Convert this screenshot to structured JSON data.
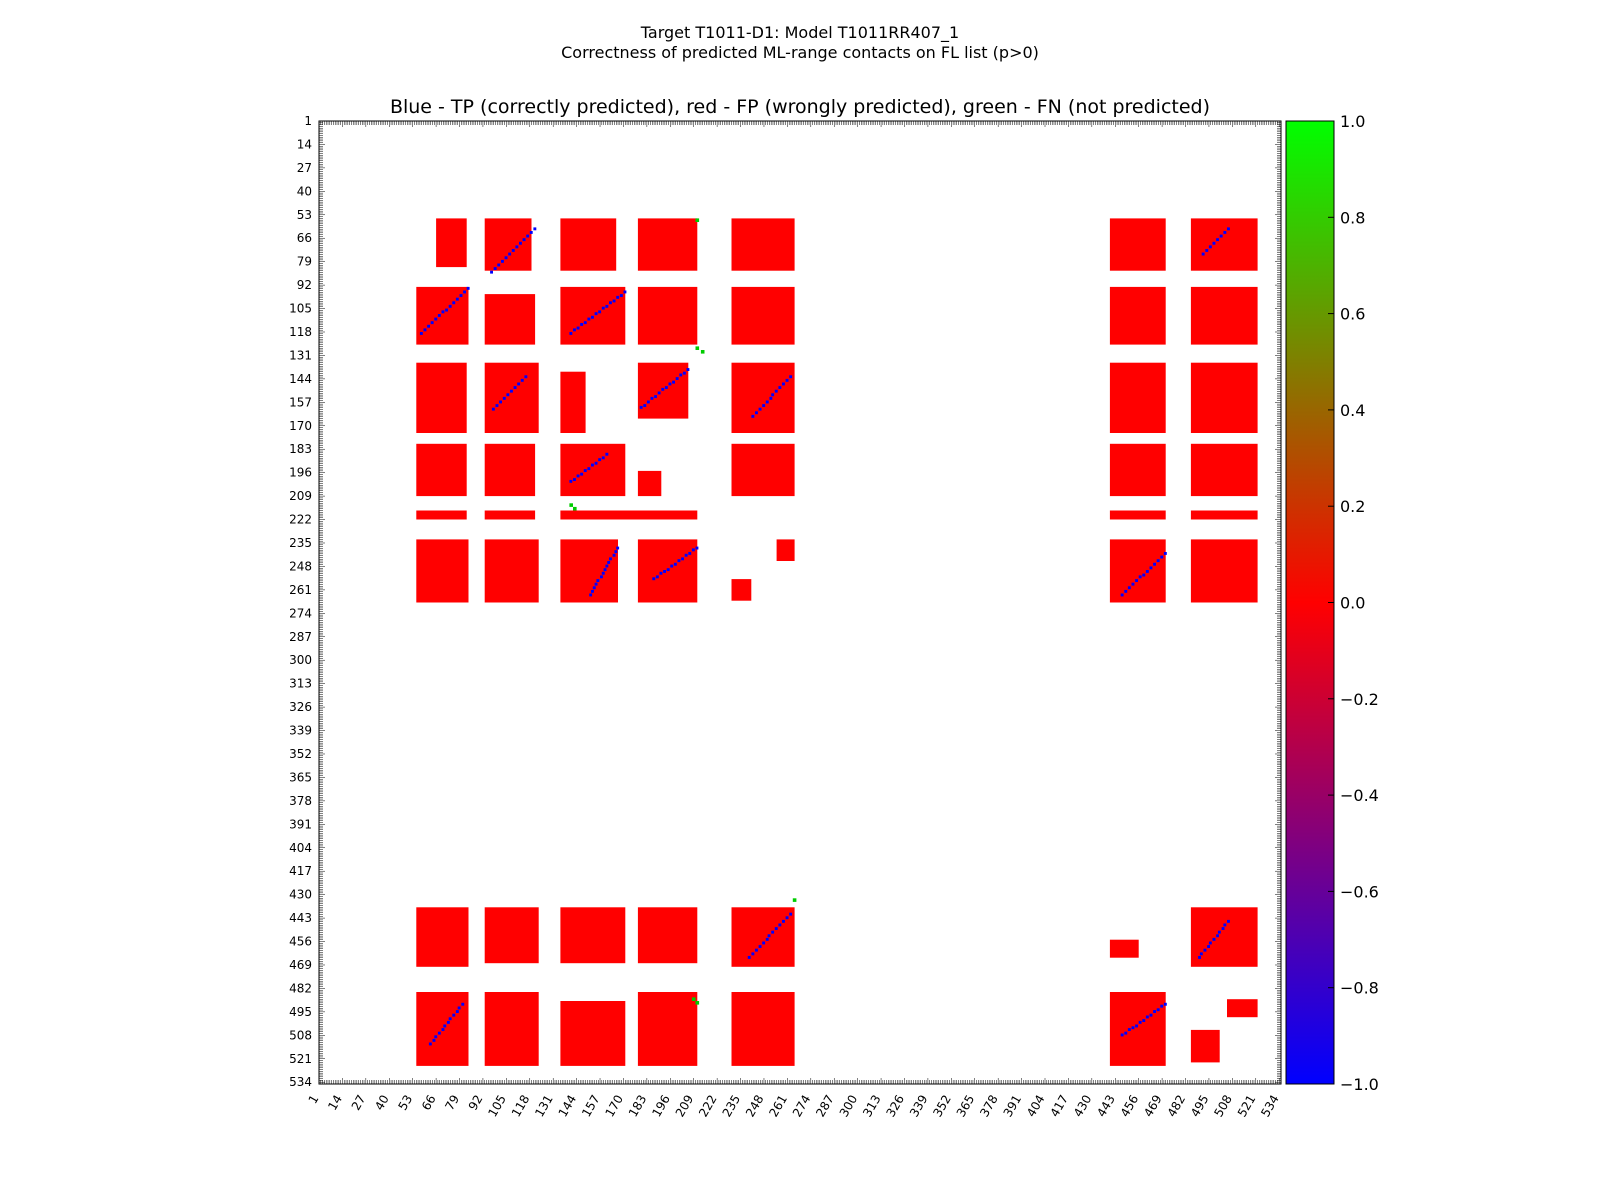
{
  "figure": {
    "suptitle_line1": "Target T1011-D1: Model T1011RR407_1",
    "suptitle_line2": "Correctness of predicted ML-range contacts on FL list (p>0)"
  },
  "colors": {
    "tp": "#0000ff",
    "fp": "#ff0000",
    "fn": "#00cc00",
    "background": "#ffffff",
    "axes_edge": "#000000"
  },
  "chart_data": {
    "type": "heatmap",
    "title": "Blue - TP (correctly predicted), red - FP (wrongly predicted), green - FN (not predicted)",
    "xlabel": "",
    "ylabel": "",
    "xlim": [
      1,
      534
    ],
    "ylim": [
      1,
      534
    ],
    "y_inverted": true,
    "grid": false,
    "x_tick_labels": [
      "1",
      "14",
      "27",
      "40",
      "53",
      "66",
      "79",
      "92",
      "105",
      "118",
      "131",
      "144",
      "157",
      "170",
      "183",
      "196",
      "209",
      "222",
      "235",
      "248",
      "261",
      "274",
      "287",
      "300",
      "313",
      "326",
      "339",
      "352",
      "365",
      "378",
      "391",
      "404",
      "417",
      "430",
      "443",
      "456",
      "469",
      "482",
      "495",
      "508",
      "521",
      "534"
    ],
    "y_tick_labels": [
      "1",
      "14",
      "27",
      "40",
      "53",
      "66",
      "79",
      "92",
      "105",
      "118",
      "131",
      "144",
      "157",
      "170",
      "183",
      "196",
      "209",
      "222",
      "235",
      "248",
      "261",
      "274",
      "287",
      "300",
      "313",
      "326",
      "339",
      "352",
      "365",
      "378",
      "391",
      "404",
      "417",
      "430",
      "443",
      "456",
      "469",
      "482",
      "495",
      "508",
      "521",
      "534"
    ],
    "colorbar": {
      "range": [
        -1.0,
        1.0
      ],
      "tick_labels": [
        "1.0",
        "0.8",
        "0.6",
        "0.4",
        "0.2",
        "0.0",
        "−0.2",
        "−0.4",
        "−0.6",
        "−0.8",
        "−1.0"
      ],
      "stops": [
        "#0000ff",
        "#ff0000",
        "#00ff00"
      ]
    },
    "red_blocks": [
      {
        "i": [
          55,
          81
        ],
        "j": [
          66,
          82
        ]
      },
      {
        "i": [
          55,
          83
        ],
        "j": [
          93,
          118
        ]
      },
      {
        "i": [
          55,
          83
        ],
        "j": [
          135,
          165
        ]
      },
      {
        "i": [
          55,
          83
        ],
        "j": [
          178,
          210
        ]
      },
      {
        "i": [
          55,
          83
        ],
        "j": [
          230,
          264
        ]
      },
      {
        "i": [
          55,
          83
        ],
        "j": [
          440,
          470
        ]
      },
      {
        "i": [
          55,
          83
        ],
        "j": [
          485,
          521
        ]
      },
      {
        "i": [
          93,
          124
        ],
        "j": [
          55,
          83
        ]
      },
      {
        "i": [
          97,
          124
        ],
        "j": [
          93,
          120
        ]
      },
      {
        "i": [
          93,
          124
        ],
        "j": [
          135,
          170
        ]
      },
      {
        "i": [
          93,
          124
        ],
        "j": [
          178,
          210
        ]
      },
      {
        "i": [
          93,
          124
        ],
        "j": [
          230,
          264
        ]
      },
      {
        "i": [
          93,
          124
        ],
        "j": [
          440,
          470
        ]
      },
      {
        "i": [
          93,
          124
        ],
        "j": [
          485,
          521
        ]
      },
      {
        "i": [
          135,
          173
        ],
        "j": [
          55,
          82
        ]
      },
      {
        "i": [
          135,
          173
        ],
        "j": [
          93,
          122
        ]
      },
      {
        "i": [
          140,
          173
        ],
        "j": [
          135,
          148
        ]
      },
      {
        "i": [
          135,
          165
        ],
        "j": [
          178,
          205
        ]
      },
      {
        "i": [
          135,
          173
        ],
        "j": [
          230,
          264
        ]
      },
      {
        "i": [
          135,
          173
        ],
        "j": [
          440,
          470
        ]
      },
      {
        "i": [
          135,
          173
        ],
        "j": [
          485,
          521
        ]
      },
      {
        "i": [
          180,
          208
        ],
        "j": [
          55,
          82
        ]
      },
      {
        "i": [
          180,
          208
        ],
        "j": [
          93,
          120
        ]
      },
      {
        "i": [
          180,
          208
        ],
        "j": [
          135,
          170
        ]
      },
      {
        "i": [
          195,
          208
        ],
        "j": [
          178,
          190
        ]
      },
      {
        "i": [
          180,
          208
        ],
        "j": [
          230,
          264
        ]
      },
      {
        "i": [
          180,
          208
        ],
        "j": [
          440,
          470
        ]
      },
      {
        "i": [
          180,
          208
        ],
        "j": [
          485,
          521
        ]
      },
      {
        "i": [
          217,
          221
        ],
        "j": [
          55,
          82
        ]
      },
      {
        "i": [
          217,
          221
        ],
        "j": [
          93,
          120
        ]
      },
      {
        "i": [
          217,
          221
        ],
        "j": [
          135,
          210
        ]
      },
      {
        "i": [
          217,
          221
        ],
        "j": [
          440,
          470
        ]
      },
      {
        "i": [
          217,
          221
        ],
        "j": [
          485,
          521
        ]
      },
      {
        "i": [
          233,
          267
        ],
        "j": [
          55,
          83
        ]
      },
      {
        "i": [
          233,
          267
        ],
        "j": [
          93,
          122
        ]
      },
      {
        "i": [
          233,
          267
        ],
        "j": [
          135,
          166
        ]
      },
      {
        "i": [
          233,
          267
        ],
        "j": [
          178,
          210
        ]
      },
      {
        "i": [
          255,
          266
        ],
        "j": [
          230,
          240
        ]
      },
      {
        "i": [
          233,
          244
        ],
        "j": [
          255,
          264
        ]
      },
      {
        "i": [
          233,
          267
        ],
        "j": [
          440,
          470
        ]
      },
      {
        "i": [
          233,
          267
        ],
        "j": [
          485,
          521
        ]
      },
      {
        "i": [
          437,
          469
        ],
        "j": [
          55,
          83
        ]
      },
      {
        "i": [
          437,
          467
        ],
        "j": [
          93,
          122
        ]
      },
      {
        "i": [
          437,
          467
        ],
        "j": [
          135,
          170
        ]
      },
      {
        "i": [
          437,
          467
        ],
        "j": [
          178,
          210
        ]
      },
      {
        "i": [
          437,
          469
        ],
        "j": [
          230,
          264
        ]
      },
      {
        "i": [
          455,
          464
        ],
        "j": [
          440,
          455
        ]
      },
      {
        "i": [
          437,
          469
        ],
        "j": [
          485,
          521
        ]
      },
      {
        "i": [
          484,
          524
        ],
        "j": [
          55,
          83
        ]
      },
      {
        "i": [
          484,
          524
        ],
        "j": [
          93,
          122
        ]
      },
      {
        "i": [
          489,
          524
        ],
        "j": [
          135,
          170
        ]
      },
      {
        "i": [
          484,
          524
        ],
        "j": [
          178,
          210
        ]
      },
      {
        "i": [
          484,
          524
        ],
        "j": [
          230,
          264
        ]
      },
      {
        "i": [
          484,
          524
        ],
        "j": [
          440,
          470
        ]
      },
      {
        "i": [
          505,
          522
        ],
        "j": [
          485,
          500
        ]
      },
      {
        "i": [
          488,
          497
        ],
        "j": [
          505,
          521
        ]
      }
    ],
    "tp_segments": [
      {
        "i": [
          60,
          85
        ],
        "j": [
          95,
          120
        ]
      },
      {
        "i": [
          93,
          118
        ],
        "j": [
          57,
          83
        ]
      },
      {
        "i": [
          95,
          118
        ],
        "j": [
          140,
          170
        ]
      },
      {
        "i": [
          138,
          160
        ],
        "j": [
          178,
          205
        ]
      },
      {
        "i": [
          142,
          165
        ],
        "j": [
          240,
          262
        ]
      },
      {
        "i": [
          142,
          160
        ],
        "j": [
          97,
          115
        ]
      },
      {
        "i": [
          185,
          200
        ],
        "j": [
          140,
          160
        ]
      },
      {
        "i": [
          237,
          264
        ],
        "j": [
          150,
          166
        ]
      },
      {
        "i": [
          237,
          255
        ],
        "j": [
          185,
          210
        ]
      },
      {
        "i": [
          240,
          264
        ],
        "j": [
          445,
          470
        ]
      },
      {
        "i": [
          440,
          465
        ],
        "j": [
          238,
          262
        ]
      },
      {
        "i": [
          444,
          465
        ],
        "j": [
          488,
          505
        ]
      },
      {
        "i": [
          490,
          512
        ],
        "j": [
          62,
          80
        ]
      },
      {
        "i": [
          490,
          508
        ],
        "j": [
          445,
          470
        ]
      },
      {
        "i": [
          60,
          75
        ],
        "j": [
          490,
          505
        ]
      }
    ],
    "fn_points": [
      {
        "i": 213,
        "j": 140
      },
      {
        "i": 215,
        "j": 142
      },
      {
        "i": 126,
        "j": 210
      },
      {
        "i": 128,
        "j": 213
      },
      {
        "i": 432,
        "j": 264
      },
      {
        "i": 487,
        "j": 208
      },
      {
        "i": 489,
        "j": 210
      },
      {
        "i": 55,
        "j": 210
      }
    ]
  }
}
